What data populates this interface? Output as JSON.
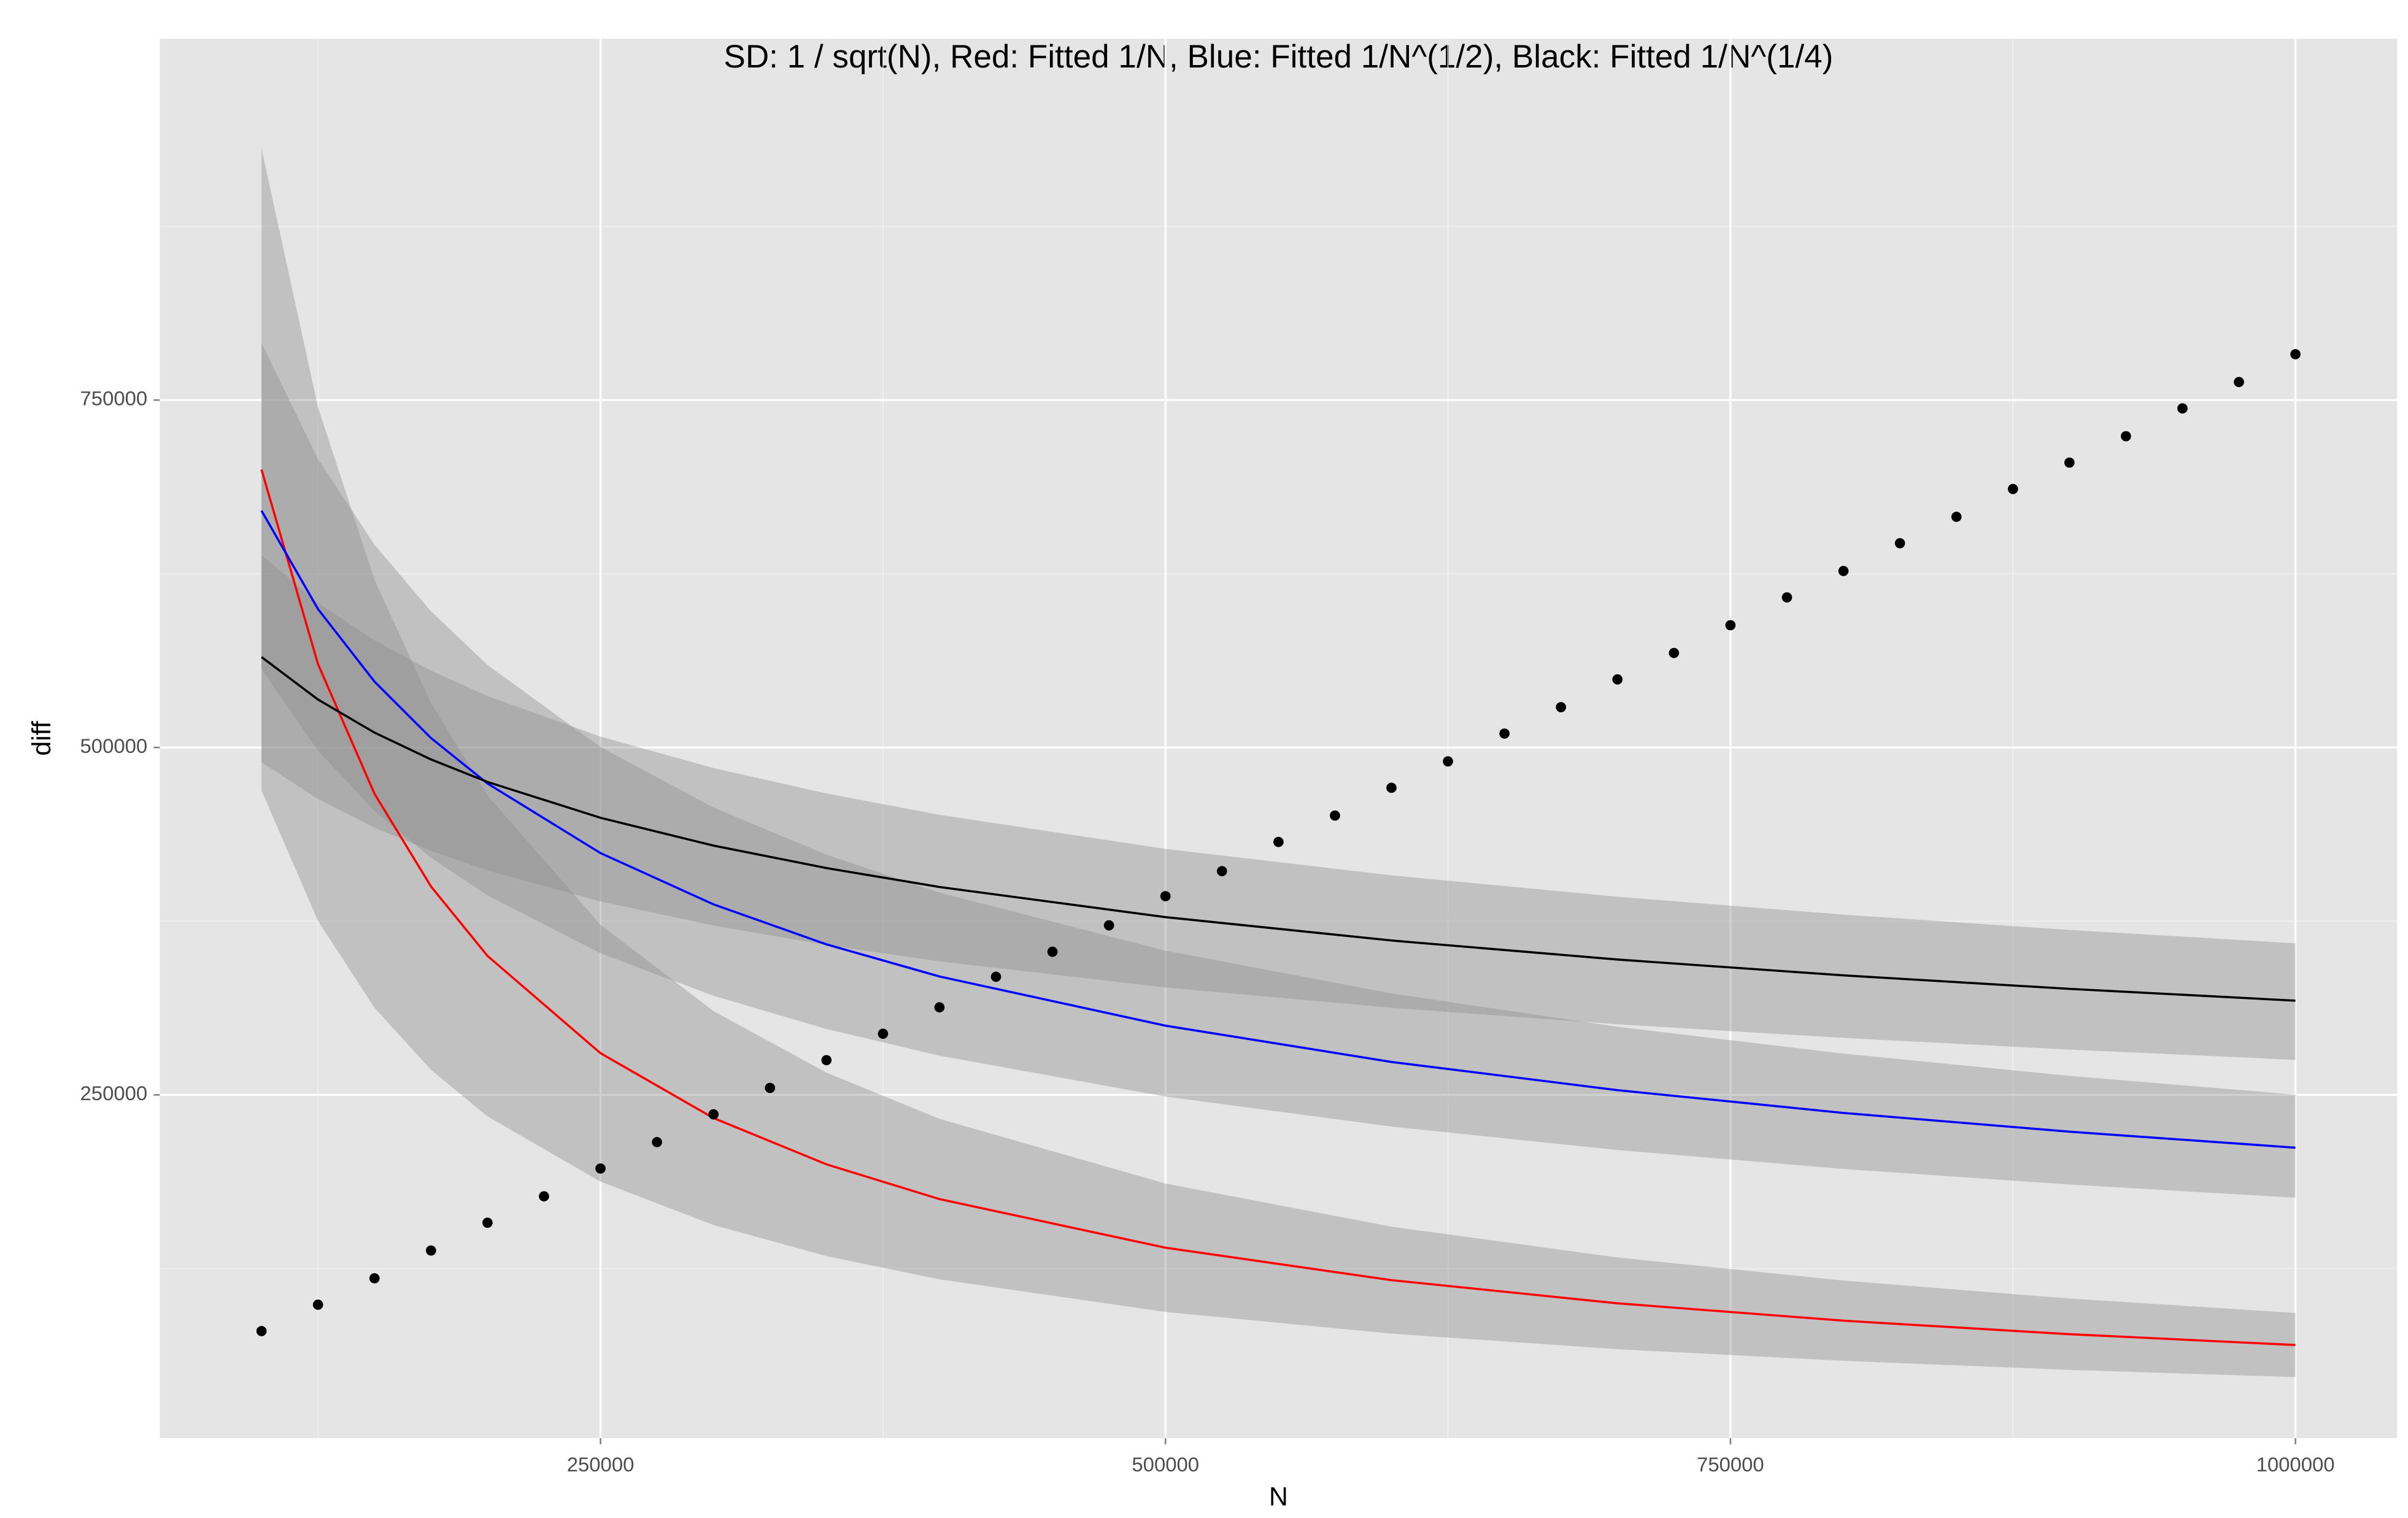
{
  "chart_data": {
    "type": "scatter",
    "title": "SD: 1 / sqrt(N), Red: Fitted 1/N, Blue: Fitted 1/N^(1/2), Black: Fitted 1/N^(1/4)",
    "x_label": "N",
    "y_label": "diff",
    "xlim": [
      55000,
      1045000
    ],
    "ylim": [
      3000,
      1010000
    ],
    "xticks": [
      250000,
      500000,
      750000,
      1000000
    ],
    "yticks": [
      250000,
      500000,
      750000
    ],
    "minor_xticks": [
      125000,
      375000,
      625000,
      875000
    ],
    "minor_yticks": [
      125000,
      375000,
      625000,
      875000
    ],
    "grid": true,
    "points": {
      "color": "#000000",
      "x": [
        100000,
        125000,
        150000,
        175000,
        200000,
        225000,
        250000,
        275000,
        300000,
        325000,
        350000,
        375000,
        400000,
        425000,
        450000,
        475000,
        500000,
        525000,
        550000,
        575000,
        600000,
        625000,
        650000,
        675000,
        700000,
        725000,
        750000,
        775000,
        800000,
        825000,
        850000,
        875000,
        900000,
        925000,
        950000,
        975000,
        1000000
      ],
      "values": [
        80000,
        99000,
        118000,
        138000,
        158000,
        177000,
        197000,
        216000,
        236000,
        255000,
        275000,
        294000,
        313000,
        335000,
        353000,
        372000,
        393000,
        411000,
        432000,
        451000,
        471000,
        490000,
        510000,
        529000,
        549000,
        568000,
        588000,
        608000,
        627000,
        647000,
        666000,
        686000,
        705000,
        724000,
        744000,
        763000,
        783000
      ]
    },
    "curve_x": [
      100000,
      125000,
      150000,
      175000,
      200000,
      250000,
      300000,
      350000,
      400000,
      500000,
      600000,
      700000,
      800000,
      900000,
      1000000
    ],
    "band_color": "#8c8c8c",
    "series": [
      {
        "color": "#ff0000",
        "values": [
          700000,
          560000,
          466667,
          400000,
          350000,
          280000,
          233333,
          200000,
          175000,
          140000,
          116667,
          100000,
          87500,
          77778,
          70000
        ],
        "upper": [
          931000,
          744800,
          620667,
          532000,
          465500,
          372400,
          310333,
          266000,
          232750,
          186200,
          155167,
          133000,
          116375,
          103444,
          93100
        ],
        "lower": [
          469000,
          375200,
          312667,
          268000,
          234500,
          187600,
          156333,
          134000,
          117250,
          93800,
          78167,
          67000,
          58625,
          52111,
          46900
        ]
      },
      {
        "color": "#0000ff",
        "values": [
          670400,
          599600,
          547400,
          506800,
          474100,
          424000,
          387100,
          358300,
          335200,
          299800,
          273700,
          253400,
          237000,
          223500,
          212000
        ],
        "upper": [
          791100,
          707500,
          645900,
          598000,
          559400,
          500300,
          456800,
          422800,
          395500,
          353800,
          323000,
          299000,
          279700,
          263700,
          250200
        ],
        "lower": [
          556400,
          497700,
          454300,
          420600,
          393500,
          351900,
          321300,
          297400,
          278200,
          248800,
          227200,
          210300,
          196700,
          185500,
          176000
        ]
      },
      {
        "color": "#000000",
        "values": [
          565100,
          534500,
          510700,
          491400,
          475200,
          449400,
          429400,
          413200,
          399600,
          377900,
          361100,
          347400,
          336000,
          326300,
          317800
        ],
        "upper": [
          638600,
          604000,
          577100,
          555300,
          537000,
          507800,
          485200,
          466900,
          451500,
          427000,
          408000,
          392600,
          379700,
          368700,
          359100
        ],
        "lower": [
          489400,
          462900,
          442300,
          425600,
          411500,
          389200,
          371900,
          357800,
          346100,
          327300,
          312700,
          300800,
          291000,
          282600,
          275200
        ]
      }
    ]
  }
}
